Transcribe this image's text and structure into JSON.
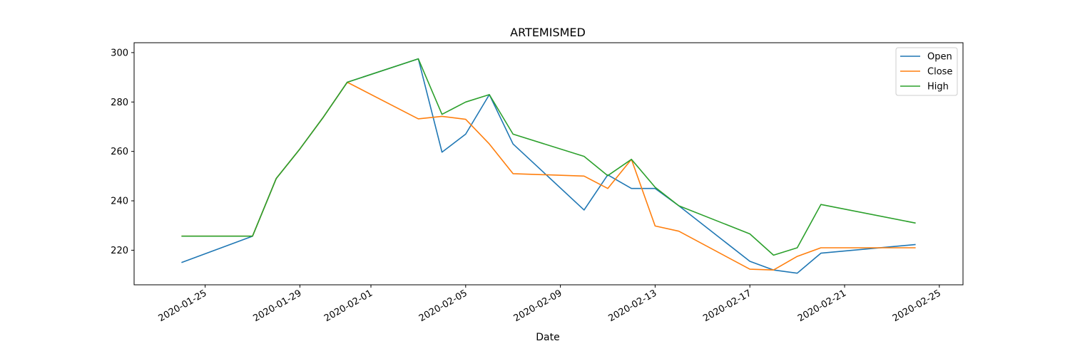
{
  "chart_data": {
    "type": "line",
    "title": "ARTEMISMED",
    "xlabel": "Date",
    "ylabel": "",
    "xlim": [
      "2020-01-22",
      "2020-02-26"
    ],
    "ylim": [
      206,
      304
    ],
    "x_ticks": [
      "2020-01-25",
      "2020-01-29",
      "2020-02-01",
      "2020-02-05",
      "2020-02-09",
      "2020-02-13",
      "2020-02-17",
      "2020-02-21",
      "2020-02-25"
    ],
    "y_ticks": [
      220,
      240,
      260,
      280,
      300
    ],
    "legend_position": "top-right",
    "grid": false,
    "x": [
      "2020-01-24",
      "2020-01-27",
      "2020-01-28",
      "2020-01-29",
      "2020-01-30",
      "2020-01-31",
      "2020-02-03",
      "2020-02-04",
      "2020-02-05",
      "2020-02-06",
      "2020-02-07",
      "2020-02-10",
      "2020-02-11",
      "2020-02-12",
      "2020-02-13",
      "2020-02-14",
      "2020-02-17",
      "2020-02-18",
      "2020-02-19",
      "2020-02-20",
      "2020-02-24"
    ],
    "series": [
      {
        "name": "Open",
        "color": "#1f77b4",
        "values": [
          215,
          225.7,
          249,
          261,
          274,
          288,
          297.5,
          259.7,
          267,
          283,
          263,
          236.3,
          250.5,
          245,
          245,
          238,
          215.5,
          212,
          210.7,
          218.8,
          222.3
        ]
      },
      {
        "name": "Close",
        "color": "#ff7f0e",
        "values": [
          225.7,
          225.7,
          249,
          261,
          274,
          288,
          273.2,
          274.2,
          273,
          263,
          251,
          250,
          245,
          256.8,
          229.8,
          227.7,
          212.3,
          212,
          217.5,
          221,
          221
        ]
      },
      {
        "name": "High",
        "color": "#2ca02c",
        "values": [
          225.7,
          225.7,
          249,
          261,
          274,
          288,
          297.5,
          275,
          280,
          283,
          267,
          258,
          250.2,
          256.8,
          245.5,
          238,
          226.6,
          218,
          221,
          238.5,
          231
        ]
      }
    ]
  }
}
